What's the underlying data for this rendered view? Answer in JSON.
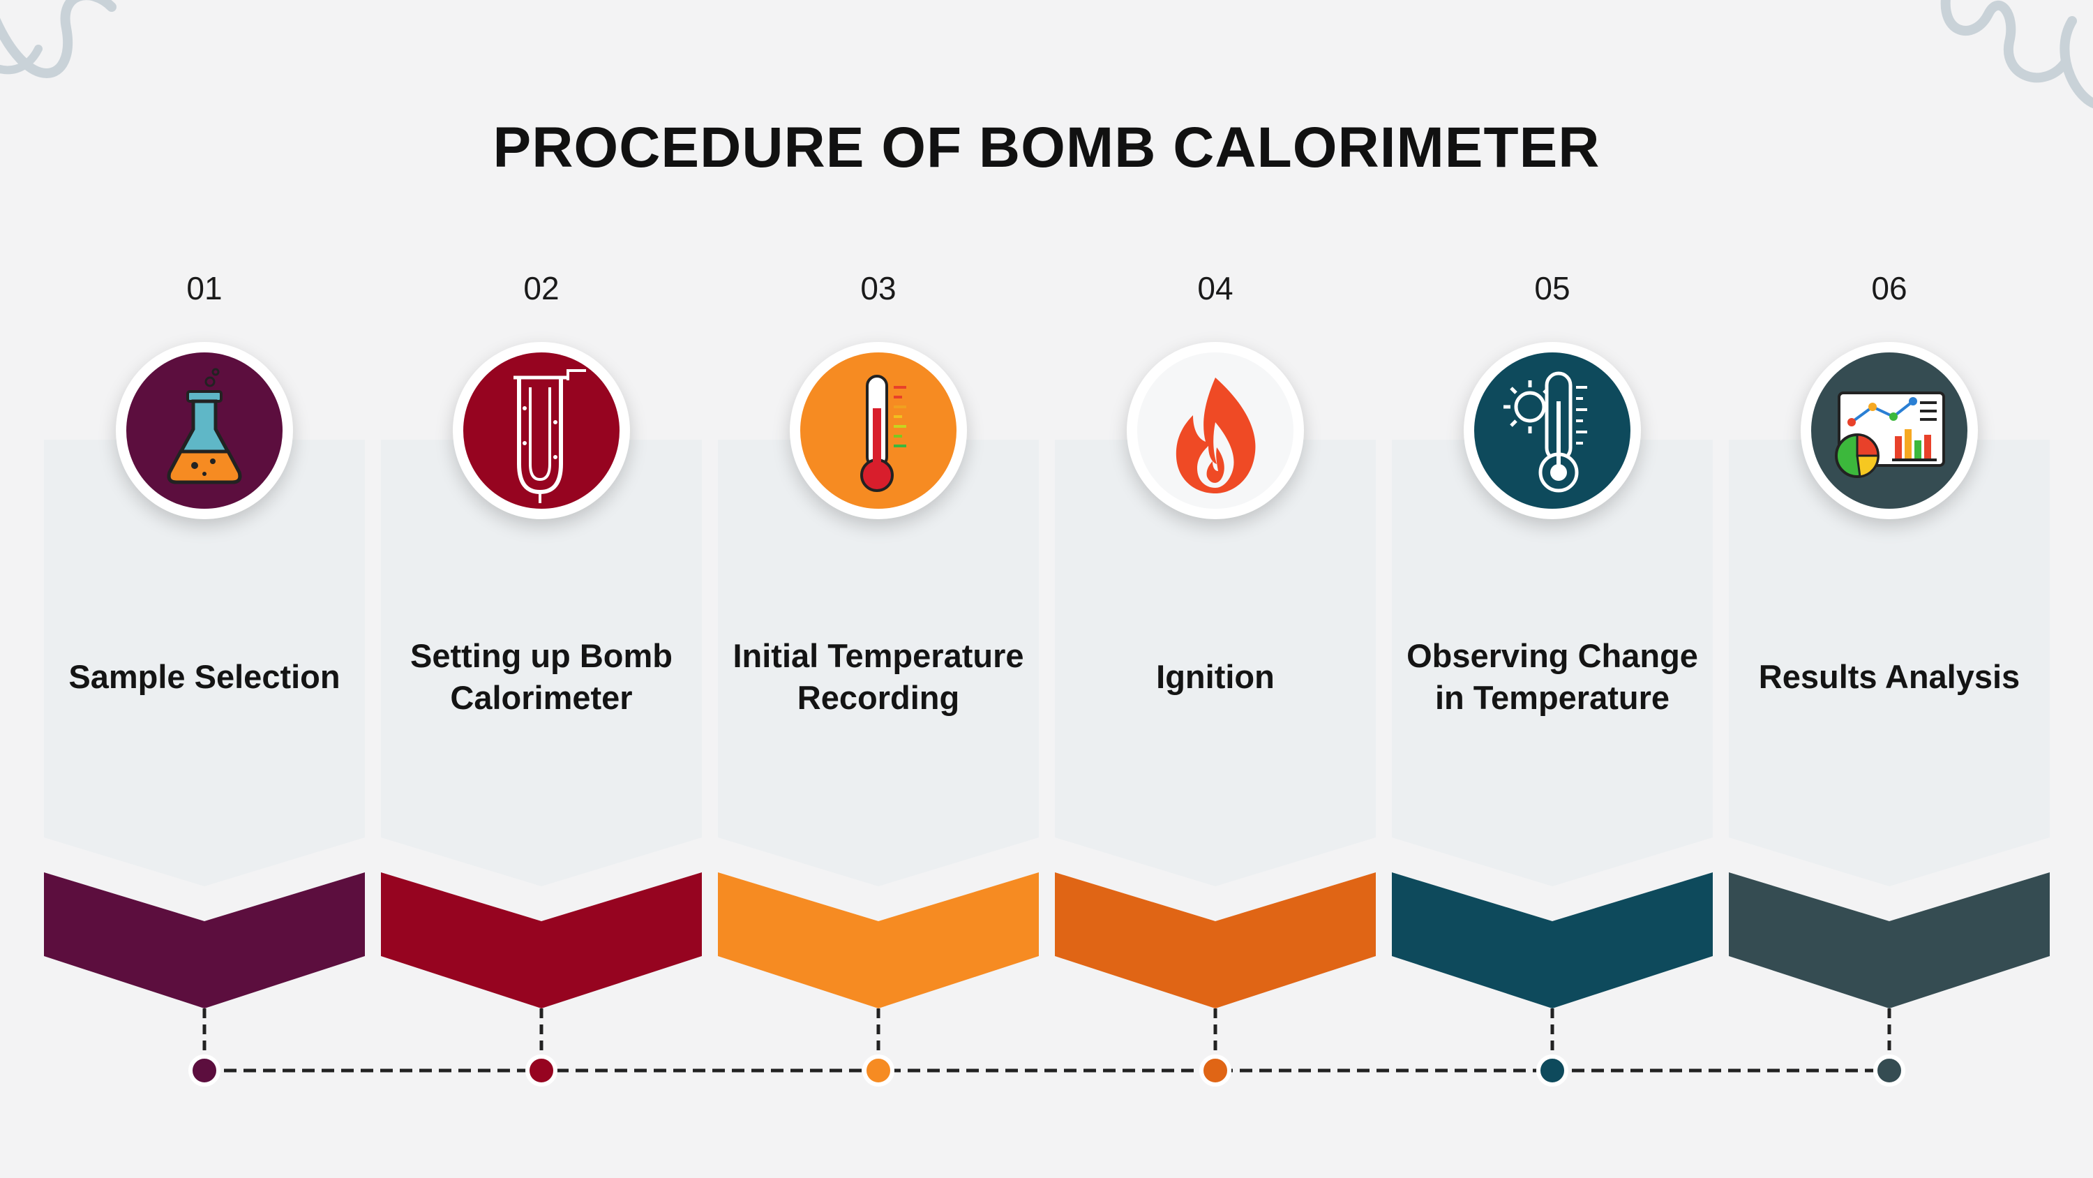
{
  "title": "PROCEDURE OF BOMB CALORIMETER",
  "steps": [
    {
      "num": "01",
      "label": "Sample Selection",
      "icon": "flask-icon",
      "color": "#5c0e3e"
    },
    {
      "num": "02",
      "label": "Setting up Bomb Calorimeter",
      "icon": "bomb-calorimeter-icon",
      "color": "#960420"
    },
    {
      "num": "03",
      "label": "Initial Temperature Recording",
      "icon": "thermometer-icon",
      "color": "#f68b22"
    },
    {
      "num": "04",
      "label": "Ignition",
      "icon": "flame-icon",
      "color": "#e06515"
    },
    {
      "num": "05",
      "label": "Observing Change in Temperature",
      "icon": "sun-thermometer-icon",
      "color": "#0e4a5c"
    },
    {
      "num": "06",
      "label": "Results Analysis",
      "icon": "chart-analysis-icon",
      "color": "#354c52"
    }
  ]
}
